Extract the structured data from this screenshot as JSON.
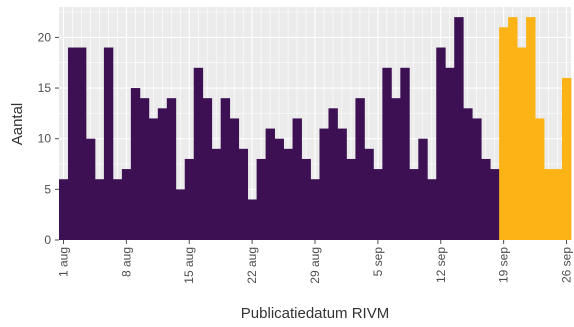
{
  "chart_data": {
    "type": "bar",
    "xlabel": "Publicatiedatum RIVM",
    "ylabel": "Aantal",
    "ylim": [
      0,
      23
    ],
    "y_ticks": [
      0,
      5,
      10,
      15,
      20
    ],
    "x_tick_labels": [
      "1 aug",
      "8 aug",
      "15 aug",
      "22 aug",
      "29 aug",
      "5 sep",
      "12 sep",
      "19 sep",
      "26 sep"
    ],
    "x_tick_indices": [
      0,
      7,
      14,
      21,
      28,
      35,
      42,
      49,
      56
    ],
    "categories": [
      "1 aug",
      "2 aug",
      "3 aug",
      "4 aug",
      "5 aug",
      "6 aug",
      "7 aug",
      "8 aug",
      "9 aug",
      "10 aug",
      "11 aug",
      "12 aug",
      "13 aug",
      "14 aug",
      "15 aug",
      "16 aug",
      "17 aug",
      "18 aug",
      "19 aug",
      "20 aug",
      "21 aug",
      "22 aug",
      "23 aug",
      "24 aug",
      "25 aug",
      "26 aug",
      "27 aug",
      "28 aug",
      "29 aug",
      "30 aug",
      "31 aug",
      "1 sep",
      "2 sep",
      "3 sep",
      "4 sep",
      "5 sep",
      "6 sep",
      "7 sep",
      "8 sep",
      "9 sep",
      "10 sep",
      "11 sep",
      "12 sep",
      "13 sep",
      "14 sep",
      "15 sep",
      "16 sep",
      "17 sep",
      "18 sep",
      "19 sep",
      "20 sep",
      "21 sep",
      "22 sep",
      "23 sep",
      "24 sep",
      "25 sep",
      "26 sep"
    ],
    "values": [
      6,
      19,
      19,
      10,
      6,
      19,
      6,
      7,
      15,
      14,
      12,
      13,
      14,
      5,
      8,
      17,
      14,
      9,
      14,
      12,
      9,
      4,
      8,
      11,
      10,
      9,
      12,
      8,
      6,
      11,
      13,
      11,
      8,
      14,
      9,
      7,
      17,
      14,
      17,
      7,
      10,
      6,
      19,
      17,
      22,
      13,
      12,
      8,
      7,
      21,
      22,
      19,
      22,
      12,
      7,
      7,
      16
    ],
    "highlight_from_index": 49,
    "colors": {
      "main": "#3c1053",
      "highlight": "#fcb315",
      "panel_background": "#ebebeb",
      "grid": "#ffffff"
    },
    "grid": true
  }
}
